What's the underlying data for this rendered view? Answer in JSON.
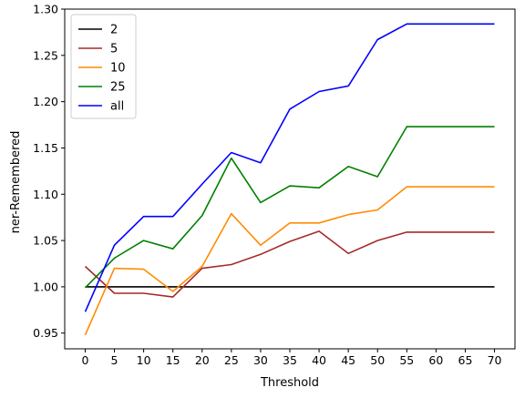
{
  "chart_data": {
    "type": "line",
    "xlabel": "Threshold",
    "ylabel": "ner-Remembered",
    "x": [
      0,
      5,
      10,
      15,
      20,
      25,
      30,
      35,
      40,
      45,
      50,
      55,
      60,
      65,
      70
    ],
    "x_tick_labels": [
      "0",
      "5",
      "10",
      "15",
      "20",
      "25",
      "30",
      "35",
      "40",
      "45",
      "50",
      "55",
      "60",
      "65",
      "70"
    ],
    "y_ticks": [
      0.95,
      1.0,
      1.05,
      1.1,
      1.15,
      1.2,
      1.25,
      1.3
    ],
    "y_tick_labels": [
      "0.95",
      "1.00",
      "1.05",
      "1.10",
      "1.15",
      "1.20",
      "1.25",
      "1.30"
    ],
    "xlim": [
      -3.5,
      73.5
    ],
    "ylim": [
      0.933,
      1.3
    ],
    "grid": false,
    "legend_position": "top-left",
    "series": [
      {
        "name": "2",
        "color": "#000000",
        "values": [
          1.0,
          1.0,
          1.0,
          1.0,
          1.0,
          1.0,
          1.0,
          1.0,
          1.0,
          1.0,
          1.0,
          1.0,
          1.0,
          1.0,
          1.0
        ]
      },
      {
        "name": "5",
        "color": "#a52a2a",
        "values": [
          1.022,
          0.993,
          0.993,
          0.989,
          1.02,
          1.024,
          1.035,
          1.049,
          1.06,
          1.036,
          1.05,
          1.059,
          1.059,
          1.059,
          1.059
        ]
      },
      {
        "name": "10",
        "color": "#ff8c00",
        "values": [
          0.948,
          1.02,
          1.019,
          0.995,
          1.022,
          1.079,
          1.045,
          1.069,
          1.069,
          1.078,
          1.083,
          1.108,
          1.108,
          1.108,
          1.108
        ]
      },
      {
        "name": "25",
        "color": "#008000",
        "values": [
          0.999,
          1.031,
          1.05,
          1.041,
          1.077,
          1.139,
          1.091,
          1.109,
          1.107,
          1.13,
          1.119,
          1.173,
          1.173,
          1.173,
          1.173
        ]
      },
      {
        "name": "all",
        "color": "#0000ff",
        "values": [
          0.973,
          1.045,
          1.076,
          1.076,
          1.111,
          1.145,
          1.134,
          1.192,
          1.211,
          1.217,
          1.267,
          1.284,
          1.284,
          1.284,
          1.284
        ]
      }
    ]
  }
}
